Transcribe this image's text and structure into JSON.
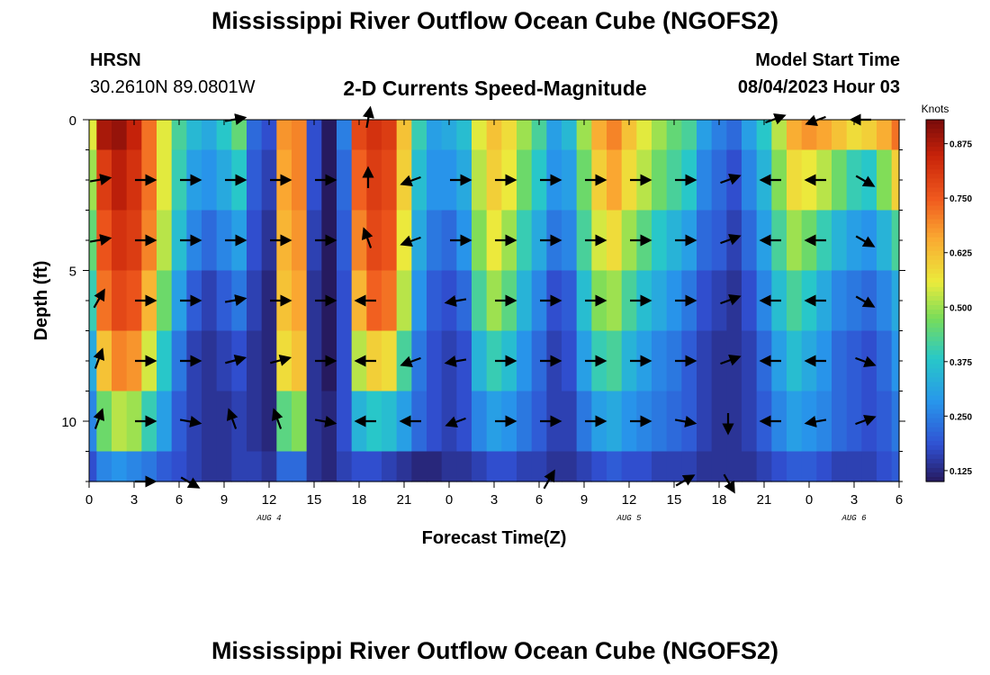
{
  "header": {
    "title": "Mississippi River Outflow Ocean Cube (NGOFS2)",
    "station": "HRSN",
    "coords": "30.2610N  89.0801W",
    "subtitle": "2-D Currents Speed-Magnitude",
    "start_label": "Model Start Time",
    "start_value": "08/04/2023 Hour 03"
  },
  "footer": {
    "title": "Mississippi River Outflow Ocean Cube (NGOFS2)"
  },
  "chart_data": {
    "type": "heatmap",
    "xlabel": "Forecast Time(Z)",
    "ylabel": "Depth (ft)",
    "x_hours_range": [
      0,
      54
    ],
    "y_depth_range": [
      0,
      12
    ],
    "x_tick_hours": [
      0,
      3,
      6,
      9,
      12,
      15,
      18,
      21,
      24,
      27,
      30,
      33,
      36,
      39,
      42,
      45,
      48,
      51,
      54
    ],
    "x_tick_labels": [
      "0",
      "3",
      "6",
      "9",
      "12",
      "15",
      "18",
      "21",
      "0",
      "3",
      "6",
      "9",
      "12",
      "15",
      "18",
      "21",
      "0",
      "3",
      "6"
    ],
    "y_ticks": [
      0,
      5,
      10
    ],
    "y_tick_labels": [
      "0",
      "5",
      "10"
    ],
    "date_labels": [
      {
        "text": "AUG 4",
        "hour": 12
      },
      {
        "text": "AUG 5",
        "hour": 36
      },
      {
        "text": "AUG 6",
        "hour": 51
      }
    ],
    "colorbar": {
      "title": "Knots",
      "min": 0.1,
      "max": 0.93,
      "tick_values": [
        0.875,
        0.75,
        0.625,
        0.5,
        0.375,
        0.25,
        0.125
      ],
      "tick_labels": [
        "0.875",
        "0.750",
        "0.625",
        "0.500",
        "0.375",
        "0.250",
        "0.125"
      ]
    },
    "depth_rows": [
      {
        "depth": 0,
        "speed": [
          0.55,
          0.88,
          0.9,
          0.85,
          0.72,
          0.55,
          0.42,
          0.35,
          0.32,
          0.38,
          0.45,
          0.22,
          0.18,
          0.68,
          0.7,
          0.18,
          0.1,
          0.25,
          0.78,
          0.82,
          0.8,
          0.62,
          0.4,
          0.3,
          0.32,
          0.36,
          0.55,
          0.62,
          0.58,
          0.5,
          0.42,
          0.3,
          0.35,
          0.5,
          0.65,
          0.7,
          0.62,
          0.55,
          0.5,
          0.45,
          0.42,
          0.3,
          0.25,
          0.22,
          0.3,
          0.38,
          0.52,
          0.65,
          0.68,
          0.66,
          0.62,
          0.58,
          0.6,
          0.65,
          0.72
        ]
      },
      {
        "depth": 2,
        "speed": [
          0.5,
          0.8,
          0.86,
          0.82,
          0.72,
          0.55,
          0.4,
          0.3,
          0.28,
          0.32,
          0.38,
          0.2,
          0.16,
          0.66,
          0.7,
          0.18,
          0.1,
          0.22,
          0.74,
          0.8,
          0.78,
          0.6,
          0.36,
          0.28,
          0.28,
          0.32,
          0.52,
          0.6,
          0.56,
          0.46,
          0.38,
          0.28,
          0.3,
          0.46,
          0.6,
          0.66,
          0.58,
          0.52,
          0.46,
          0.42,
          0.38,
          0.26,
          0.22,
          0.18,
          0.26,
          0.34,
          0.48,
          0.58,
          0.56,
          0.52,
          0.46,
          0.4,
          0.38,
          0.48,
          0.6
        ]
      },
      {
        "depth": 4,
        "speed": [
          0.45,
          0.76,
          0.82,
          0.8,
          0.7,
          0.52,
          0.36,
          0.26,
          0.22,
          0.26,
          0.3,
          0.18,
          0.14,
          0.64,
          0.68,
          0.16,
          0.1,
          0.2,
          0.7,
          0.78,
          0.76,
          0.56,
          0.32,
          0.24,
          0.22,
          0.28,
          0.48,
          0.56,
          0.5,
          0.4,
          0.32,
          0.24,
          0.26,
          0.42,
          0.54,
          0.58,
          0.5,
          0.44,
          0.38,
          0.34,
          0.3,
          0.22,
          0.2,
          0.16,
          0.22,
          0.3,
          0.42,
          0.5,
          0.46,
          0.4,
          0.34,
          0.3,
          0.28,
          0.34,
          0.42
        ]
      },
      {
        "depth": 6,
        "speed": [
          0.4,
          0.72,
          0.78,
          0.76,
          0.64,
          0.46,
          0.3,
          0.2,
          0.16,
          0.2,
          0.24,
          0.16,
          0.12,
          0.62,
          0.66,
          0.14,
          0.1,
          0.18,
          0.64,
          0.74,
          0.72,
          0.52,
          0.28,
          0.2,
          0.18,
          0.22,
          0.42,
          0.5,
          0.44,
          0.34,
          0.26,
          0.18,
          0.2,
          0.36,
          0.48,
          0.5,
          0.42,
          0.36,
          0.32,
          0.28,
          0.24,
          0.18,
          0.16,
          0.14,
          0.18,
          0.26,
          0.36,
          0.42,
          0.38,
          0.32,
          0.26,
          0.24,
          0.22,
          0.26,
          0.32
        ]
      },
      {
        "depth": 8,
        "speed": [
          0.32,
          0.62,
          0.7,
          0.68,
          0.54,
          0.38,
          0.24,
          0.16,
          0.14,
          0.16,
          0.18,
          0.14,
          0.12,
          0.58,
          0.62,
          0.14,
          0.1,
          0.18,
          0.52,
          0.6,
          0.58,
          0.42,
          0.24,
          0.18,
          0.16,
          0.18,
          0.34,
          0.4,
          0.36,
          0.28,
          0.22,
          0.16,
          0.18,
          0.3,
          0.4,
          0.42,
          0.34,
          0.3,
          0.26,
          0.24,
          0.2,
          0.16,
          0.14,
          0.14,
          0.16,
          0.22,
          0.3,
          0.36,
          0.32,
          0.28,
          0.22,
          0.2,
          0.18,
          0.22,
          0.28
        ]
      },
      {
        "depth": 10,
        "speed": [
          0.26,
          0.46,
          0.52,
          0.5,
          0.4,
          0.3,
          0.2,
          0.16,
          0.14,
          0.14,
          0.16,
          0.14,
          0.12,
          0.44,
          0.48,
          0.14,
          0.12,
          0.18,
          0.34,
          0.38,
          0.36,
          0.3,
          0.22,
          0.18,
          0.16,
          0.18,
          0.26,
          0.3,
          0.28,
          0.24,
          0.2,
          0.16,
          0.16,
          0.24,
          0.3,
          0.32,
          0.28,
          0.26,
          0.24,
          0.22,
          0.2,
          0.16,
          0.14,
          0.14,
          0.16,
          0.2,
          0.26,
          0.3,
          0.28,
          0.26,
          0.22,
          0.2,
          0.18,
          0.2,
          0.24
        ]
      },
      {
        "depth": 12,
        "speed": [
          0.18,
          0.26,
          0.28,
          0.26,
          0.24,
          0.2,
          0.18,
          0.16,
          0.14,
          0.14,
          0.16,
          0.16,
          0.14,
          0.22,
          0.22,
          0.14,
          0.12,
          0.16,
          0.18,
          0.18,
          0.16,
          0.14,
          0.12,
          0.12,
          0.14,
          0.14,
          0.16,
          0.18,
          0.18,
          0.16,
          0.16,
          0.14,
          0.14,
          0.16,
          0.18,
          0.2,
          0.18,
          0.18,
          0.16,
          0.16,
          0.16,
          0.14,
          0.14,
          0.14,
          0.14,
          0.16,
          0.18,
          0.2,
          0.2,
          0.18,
          0.16,
          0.16,
          0.16,
          0.18,
          0.2
        ]
      }
    ],
    "vector_hours": [
      0,
      3,
      6,
      9,
      12,
      15,
      18,
      21,
      24,
      27,
      30,
      33,
      36,
      39,
      42,
      45,
      48,
      51,
      54
    ],
    "vector_depths": [
      0,
      2,
      4,
      6,
      8,
      10,
      12
    ],
    "vector_direction_deg": [
      [
        null,
        null,
        null,
        10,
        null,
        null,
        80,
        null,
        null,
        null,
        null,
        null,
        null,
        null,
        null,
        20,
        200,
        180,
        null
      ],
      [
        10,
        0,
        0,
        0,
        0,
        0,
        90,
        200,
        0,
        0,
        0,
        0,
        0,
        0,
        20,
        180,
        180,
        330,
        null
      ],
      [
        10,
        0,
        0,
        0,
        0,
        0,
        110,
        200,
        0,
        0,
        0,
        0,
        0,
        0,
        20,
        180,
        180,
        330,
        null
      ],
      [
        60,
        0,
        0,
        10,
        0,
        0,
        180,
        null,
        190,
        0,
        0,
        0,
        0,
        0,
        20,
        180,
        180,
        330,
        null
      ],
      [
        70,
        0,
        0,
        15,
        15,
        0,
        180,
        200,
        190,
        0,
        0,
        0,
        0,
        0,
        20,
        180,
        180,
        340,
        null
      ],
      [
        70,
        0,
        350,
        110,
        110,
        350,
        180,
        180,
        200,
        0,
        0,
        0,
        0,
        350,
        270,
        180,
        190,
        20,
        null
      ],
      [
        null,
        0,
        330,
        null,
        null,
        null,
        null,
        null,
        null,
        null,
        60,
        null,
        null,
        30,
        300,
        null,
        null,
        null,
        null
      ]
    ]
  }
}
